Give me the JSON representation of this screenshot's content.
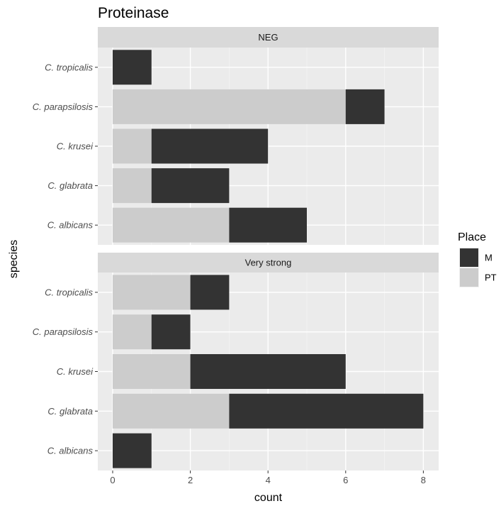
{
  "chart_data": {
    "type": "bar",
    "orientation": "horizontal",
    "stacked": true,
    "title": "Proteinase",
    "xlabel": "count",
    "ylabel": "species",
    "xlim": [
      0,
      8.4
    ],
    "xticks": [
      0,
      2,
      4,
      6,
      8
    ],
    "grid": true,
    "categories": [
      "C. tropicalis",
      "C. parapsilosis",
      "C. krusei",
      "C. glabrata",
      "C. albicans"
    ],
    "legend": {
      "title": "Place",
      "position": "right",
      "entries": [
        {
          "label": "M",
          "color": "#333333"
        },
        {
          "label": "PT",
          "color": "#cccccc"
        }
      ]
    },
    "facets": [
      {
        "label": "NEG",
        "series": [
          {
            "name": "PT",
            "color": "#cccccc",
            "values": [
              0,
              6,
              1,
              1,
              3
            ]
          },
          {
            "name": "M",
            "color": "#333333",
            "values": [
              1,
              1,
              3,
              2,
              2
            ]
          }
        ]
      },
      {
        "label": "Very strong",
        "series": [
          {
            "name": "PT",
            "color": "#cccccc",
            "values": [
              2,
              1,
              2,
              3,
              0
            ]
          },
          {
            "name": "M",
            "color": "#333333",
            "values": [
              1,
              1,
              4,
              5,
              1
            ]
          }
        ]
      }
    ]
  }
}
